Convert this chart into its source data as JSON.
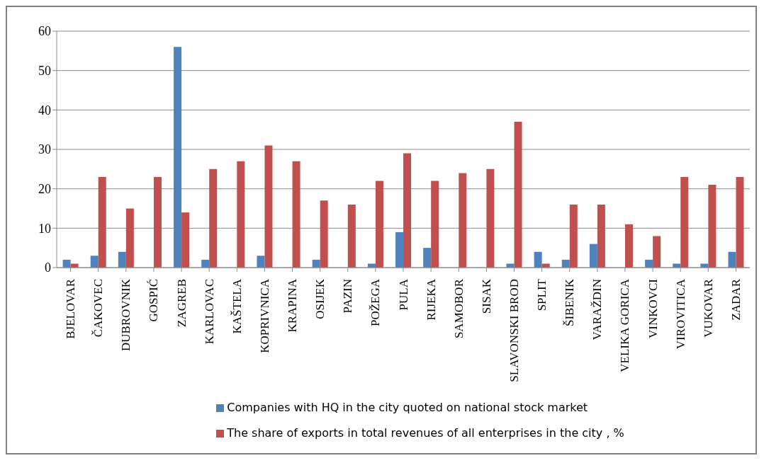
{
  "chart_data": {
    "type": "bar",
    "categories": [
      "BJELOVAR",
      "ČAKOVEC",
      "DUBROVNIK",
      "GOSPIĆ",
      "ZAGREB",
      "KARLOVAC",
      "KAŠTELA",
      "KOPRIVNICA",
      "KRAPINA",
      "OSIJEK",
      "PAZIN",
      "POŽEGA",
      "PULA",
      "RIJEKA",
      "SAMOBOR",
      "SISAK",
      "SLAVONSKI BROD",
      "SPLIT",
      "ŠIBENIK",
      "VARAŽDIN",
      "VELIKA GORICA",
      "VINKOVCI",
      "VIROVITICA",
      "VUKOVAR",
      "ZADAR"
    ],
    "series": [
      {
        "name": "Companies with HQ in the city quoted on national stock market",
        "color": "#4f81bd",
        "values": [
          2,
          3,
          4,
          0,
          56,
          2,
          0,
          3,
          0,
          2,
          0,
          1,
          9,
          5,
          0,
          0,
          1,
          4,
          2,
          6,
          0,
          2,
          1,
          1,
          4
        ]
      },
      {
        "name": "The share of exports in total revenues of all enterprises in the city , %",
        "color": "#c0504d",
        "values": [
          1,
          23,
          15,
          23,
          14,
          25,
          27,
          31,
          27,
          17,
          16,
          22,
          29,
          22,
          24,
          25,
          37,
          1,
          16,
          16,
          11,
          8,
          23,
          21,
          23
        ]
      }
    ],
    "ylim": [
      0,
      60
    ],
    "yticks": [
      0,
      10,
      20,
      30,
      40,
      50,
      60
    ],
    "grid": "y",
    "legend": "bottom"
  }
}
